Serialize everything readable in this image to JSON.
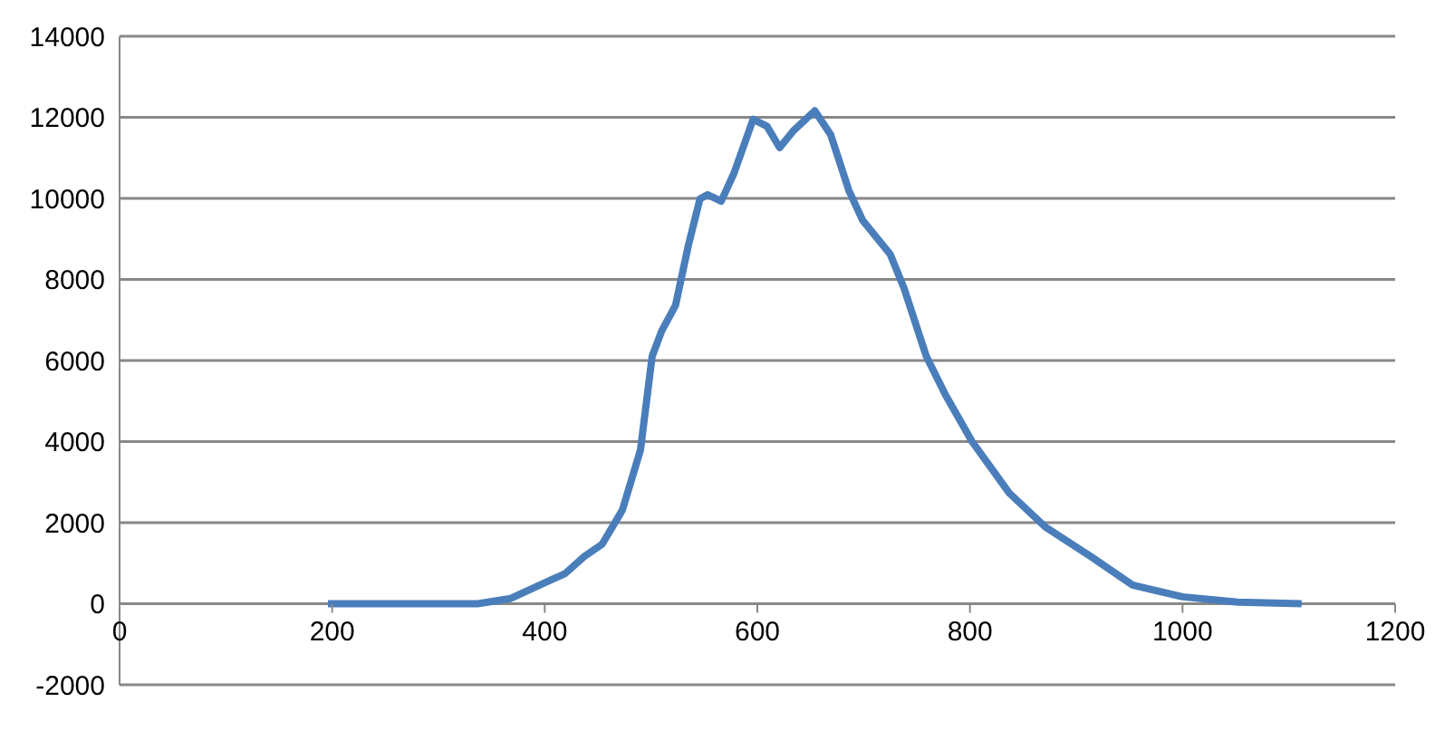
{
  "chart_data": {
    "type": "line",
    "x": [
      196,
      337,
      368,
      406,
      419,
      437,
      454,
      473,
      490,
      501,
      510,
      523,
      535,
      546,
      553,
      566,
      578,
      596,
      609,
      621,
      634,
      654,
      669,
      686,
      699,
      725,
      738,
      759,
      777,
      802,
      837,
      871,
      914,
      953,
      1000,
      1052,
      1112
    ],
    "series": [
      {
        "color": "#4a7ebb",
        "values": [
          0,
          0,
          130,
          590,
          740,
          1160,
          1470,
          2310,
          3790,
          6100,
          6730,
          7360,
          8830,
          9990,
          10090,
          9930,
          10620,
          11950,
          11780,
          11250,
          11670,
          12160,
          11570,
          10200,
          9460,
          8620,
          7780,
          6100,
          5150,
          4000,
          2730,
          1890,
          1160,
          460,
          170,
          40,
          0
        ]
      }
    ],
    "xlim": [
      0,
      1200
    ],
    "xticks": [
      0,
      200,
      400,
      600,
      800,
      1000,
      1200
    ],
    "ylim": [
      -2000,
      14000
    ],
    "yticks": [
      -2000,
      0,
      2000,
      4000,
      6000,
      8000,
      10000,
      12000,
      14000
    ],
    "grid": "y",
    "legend": false,
    "marker": "none",
    "line_style": "solid"
  }
}
